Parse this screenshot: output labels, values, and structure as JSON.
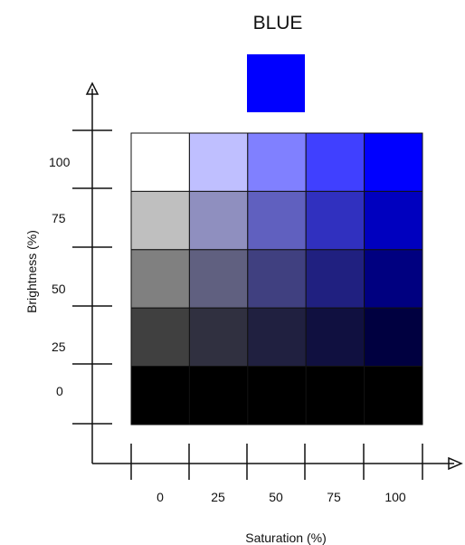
{
  "title": "BLUE",
  "swatch_color": "#0000ff",
  "x_axis": {
    "label": "Saturation (%)",
    "ticks": [
      "0",
      "25",
      "50",
      "75",
      "100"
    ]
  },
  "y_axis": {
    "label": "Brightness (%)",
    "ticks": [
      "0",
      "25",
      "50",
      "75",
      "100"
    ]
  },
  "grid": {
    "columns": [
      "0",
      "25",
      "50",
      "75",
      "100"
    ],
    "rows": [
      "100",
      "75",
      "50",
      "25",
      "0"
    ],
    "cells": [
      [
        "#ffffff",
        "#bfbfff",
        "#8080ff",
        "#4040ff",
        "#0000ff"
      ],
      [
        "#bfbfbf",
        "#8f8fbf",
        "#6060bf",
        "#3030bf",
        "#0000bf"
      ],
      [
        "#808080",
        "#606080",
        "#404080",
        "#202080",
        "#000080"
      ],
      [
        "#404040",
        "#303040",
        "#202040",
        "#101040",
        "#000040"
      ],
      [
        "#000000",
        "#000000",
        "#000000",
        "#000000",
        "#000000"
      ]
    ]
  }
}
